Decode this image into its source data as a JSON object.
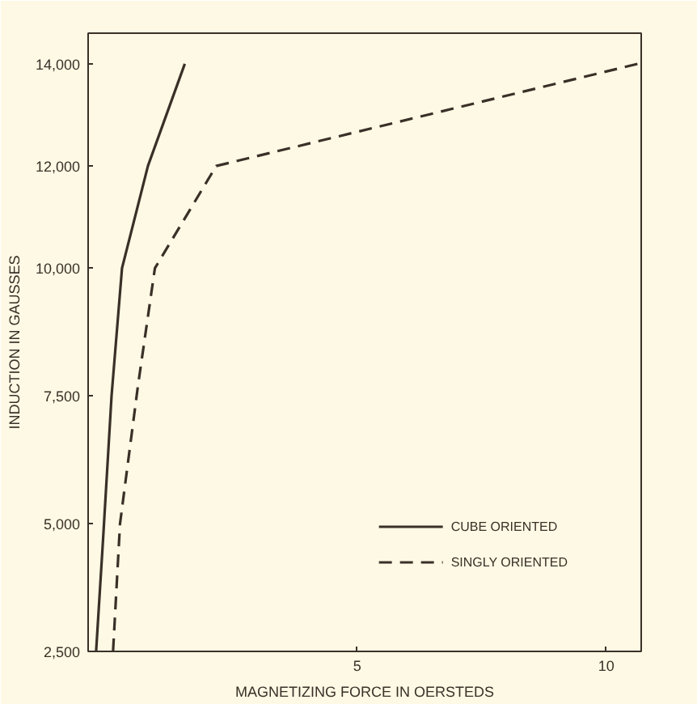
{
  "chart_data": {
    "type": "line",
    "xlabel": "MAGNETIZING FORCE IN OERSTEDS",
    "ylabel": "INDUCTION IN GAUSSES",
    "series": [
      {
        "name": "CUBE ORIENTED",
        "color": "#3a3028",
        "line_style": "solid",
        "x": [
          -0.24,
          -0.1,
          0.07,
          0.28,
          0.8,
          1.54
        ],
        "values": [
          2500,
          4700,
          7500,
          10000,
          12000,
          14000
        ]
      },
      {
        "name": "SINGLY ORIENTED",
        "color": "#3a3028",
        "line_style": "dashed",
        "x": [
          0.1,
          0.24,
          0.6,
          0.94,
          2.17,
          10.63
        ],
        "values": [
          2500,
          5000,
          7700,
          10000,
          12000,
          14000
        ]
      }
    ],
    "xlim": [
      -0.4,
      10.7
    ],
    "ylim": [
      2500,
      14600
    ],
    "xticks": [
      5,
      10
    ],
    "yticks": [
      {
        "value": 2500,
        "label": "2,500"
      },
      {
        "value": 5000,
        "label": "5,000"
      },
      {
        "value": 7500,
        "label": "7,500"
      },
      {
        "value": 10000,
        "label": "10,000"
      },
      {
        "value": 12000,
        "label": "12,000"
      },
      {
        "value": 14000,
        "label": "14,000"
      }
    ],
    "grid": false,
    "legend": "bottom right"
  }
}
